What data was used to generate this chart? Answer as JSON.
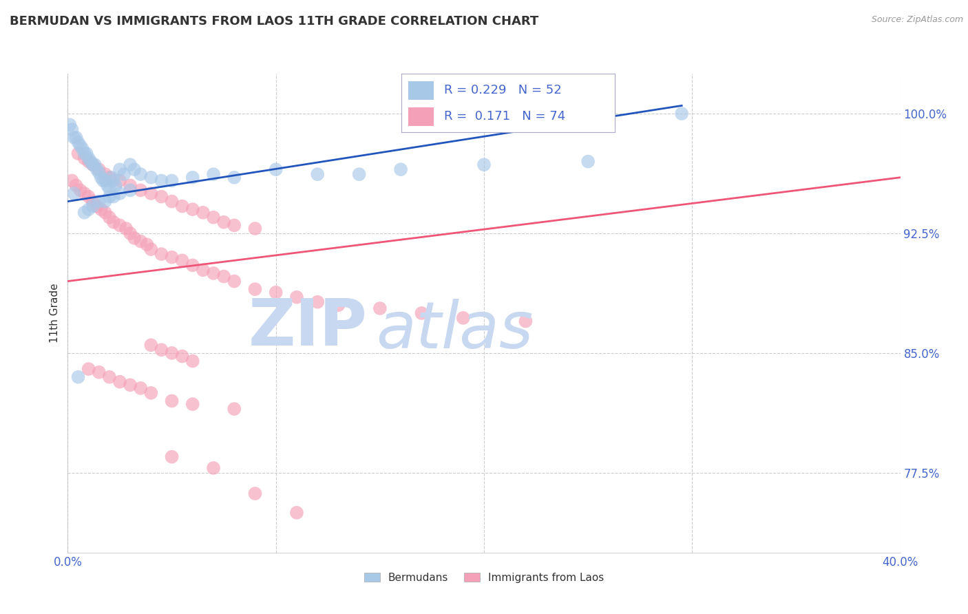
{
  "title": "BERMUDAN VS IMMIGRANTS FROM LAOS 11TH GRADE CORRELATION CHART",
  "source_text": "Source: ZipAtlas.com",
  "ylabel_label": "11th Grade",
  "legend1_label": "Bermudans",
  "legend2_label": "Immigrants from Laos",
  "r1": 0.229,
  "n1": 52,
  "r2": 0.171,
  "n2": 74,
  "blue_color": "#A8C8E8",
  "pink_color": "#F4A0B8",
  "blue_line_color": "#2255BB",
  "pink_line_color": "#EE5577",
  "watermark_zip_color": "#C8D8F0",
  "watermark_atlas_color": "#C8D8F0",
  "title_color": "#333333",
  "axis_tick_color": "#4466CC",
  "background_color": "#FFFFFF",
  "x_min": 0.0,
  "x_max": 0.4,
  "y_min": 0.725,
  "y_max": 1.025,
  "y_ticks": [
    1.0,
    0.925,
    0.85,
    0.775
  ],
  "y_tick_labels": [
    "100.0%",
    "92.5%",
    "85.0%",
    "77.5%"
  ],
  "blue_line_x0": 0.0,
  "blue_line_y0": 0.945,
  "blue_line_x1": 0.295,
  "blue_line_y1": 1.005,
  "pink_line_x0": 0.0,
  "pink_line_x1": 0.4,
  "pink_line_y0": 0.895,
  "pink_line_y1": 0.96,
  "blue_x": [
    0.001,
    0.002,
    0.003,
    0.004,
    0.005,
    0.006,
    0.007,
    0.008,
    0.009,
    0.01,
    0.011,
    0.012,
    0.013,
    0.014,
    0.015,
    0.016,
    0.017,
    0.018,
    0.019,
    0.02,
    0.021,
    0.022,
    0.023,
    0.025,
    0.027,
    0.03,
    0.032,
    0.035,
    0.04,
    0.045,
    0.05,
    0.06,
    0.07,
    0.08,
    0.1,
    0.12,
    0.14,
    0.16,
    0.2,
    0.25,
    0.295,
    0.01,
    0.015,
    0.02,
    0.025,
    0.03,
    0.008,
    0.012,
    0.018,
    0.022,
    0.005,
    0.003
  ],
  "blue_y": [
    0.993,
    0.99,
    0.985,
    0.985,
    0.982,
    0.98,
    0.978,
    0.975,
    0.975,
    0.972,
    0.97,
    0.968,
    0.968,
    0.965,
    0.963,
    0.96,
    0.958,
    0.958,
    0.955,
    0.953,
    0.96,
    0.958,
    0.955,
    0.965,
    0.962,
    0.968,
    0.965,
    0.962,
    0.96,
    0.958,
    0.958,
    0.96,
    0.962,
    0.96,
    0.965,
    0.962,
    0.962,
    0.965,
    0.968,
    0.97,
    1.0,
    0.94,
    0.945,
    0.948,
    0.95,
    0.952,
    0.938,
    0.942,
    0.945,
    0.948,
    0.835,
    0.95
  ],
  "pink_x": [
    0.002,
    0.004,
    0.006,
    0.008,
    0.01,
    0.012,
    0.014,
    0.016,
    0.018,
    0.02,
    0.022,
    0.025,
    0.028,
    0.03,
    0.032,
    0.035,
    0.038,
    0.04,
    0.045,
    0.05,
    0.055,
    0.06,
    0.065,
    0.07,
    0.075,
    0.08,
    0.09,
    0.1,
    0.11,
    0.12,
    0.13,
    0.15,
    0.17,
    0.19,
    0.22,
    0.005,
    0.008,
    0.01,
    0.012,
    0.015,
    0.018,
    0.02,
    0.025,
    0.03,
    0.035,
    0.04,
    0.045,
    0.05,
    0.055,
    0.06,
    0.065,
    0.07,
    0.075,
    0.08,
    0.09,
    0.04,
    0.045,
    0.05,
    0.055,
    0.06,
    0.01,
    0.015,
    0.02,
    0.025,
    0.03,
    0.035,
    0.04,
    0.05,
    0.06,
    0.08,
    0.05,
    0.07,
    0.09,
    0.11
  ],
  "pink_y": [
    0.958,
    0.955,
    0.952,
    0.95,
    0.948,
    0.945,
    0.942,
    0.94,
    0.938,
    0.935,
    0.932,
    0.93,
    0.928,
    0.925,
    0.922,
    0.92,
    0.918,
    0.915,
    0.912,
    0.91,
    0.908,
    0.905,
    0.902,
    0.9,
    0.898,
    0.895,
    0.89,
    0.888,
    0.885,
    0.882,
    0.88,
    0.878,
    0.875,
    0.872,
    0.87,
    0.975,
    0.972,
    0.97,
    0.968,
    0.965,
    0.962,
    0.96,
    0.958,
    0.955,
    0.952,
    0.95,
    0.948,
    0.945,
    0.942,
    0.94,
    0.938,
    0.935,
    0.932,
    0.93,
    0.928,
    0.855,
    0.852,
    0.85,
    0.848,
    0.845,
    0.84,
    0.838,
    0.835,
    0.832,
    0.83,
    0.828,
    0.825,
    0.82,
    0.818,
    0.815,
    0.785,
    0.778,
    0.762,
    0.75
  ]
}
